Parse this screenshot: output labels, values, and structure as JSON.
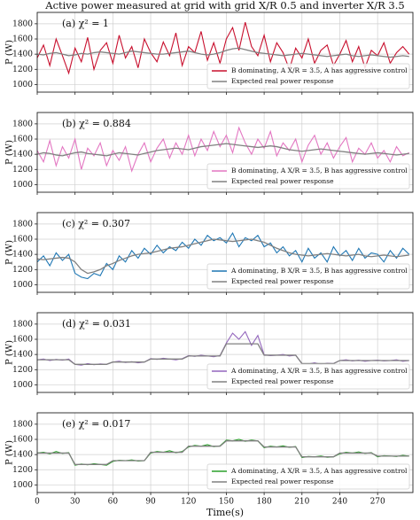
{
  "chart_data": [
    {
      "type": "line",
      "title": "Active power measured at grid with grid X/R 0.5 and inverter X/R 3.5",
      "annotation": "(a) χ² = 1",
      "ylabel": "P (W)",
      "x": [
        0,
        5,
        10,
        15,
        20,
        25,
        30,
        35,
        40,
        45,
        50,
        55,
        60,
        65,
        70,
        75,
        80,
        85,
        90,
        95,
        100,
        105,
        110,
        115,
        120,
        125,
        130,
        135,
        140,
        145,
        150,
        155,
        160,
        165,
        170,
        175,
        180,
        185,
        190,
        195,
        200,
        205,
        210,
        215,
        220,
        225,
        230,
        235,
        240,
        245,
        250,
        255,
        260,
        265,
        270,
        275,
        280,
        285,
        290,
        295
      ],
      "series": [
        {
          "name": "B dominating, A X/R = 3.5, A has aggressive control",
          "color": "#c8102e",
          "values": [
            1350,
            1520,
            1250,
            1600,
            1380,
            1150,
            1480,
            1300,
            1620,
            1200,
            1450,
            1550,
            1280,
            1650,
            1350,
            1500,
            1220,
            1600,
            1420,
            1300,
            1560,
            1380,
            1680,
            1250,
            1500,
            1420,
            1700,
            1320,
            1550,
            1280,
            1600,
            1750,
            1450,
            1820,
            1500,
            1380,
            1650,
            1300,
            1550,
            1420,
            1200,
            1480,
            1350,
            1600,
            1280,
            1450,
            1520,
            1250,
            1400,
            1580,
            1300,
            1500,
            1220,
            1450,
            1380,
            1550,
            1280,
            1420,
            1500,
            1400
          ]
        },
        {
          "name": "Expected real power response",
          "color": "#808080",
          "values": [
            1400,
            1390,
            1410,
            1420,
            1400,
            1380,
            1390,
            1410,
            1400,
            1420,
            1430,
            1420,
            1410,
            1400,
            1420,
            1440,
            1430,
            1420,
            1410,
            1400,
            1400,
            1410,
            1420,
            1430,
            1440,
            1420,
            1400,
            1390,
            1400,
            1420,
            1450,
            1470,
            1480,
            1460,
            1440,
            1420,
            1410,
            1400,
            1390,
            1380,
            1390,
            1400,
            1410,
            1400,
            1390,
            1380,
            1370,
            1380,
            1390,
            1400,
            1380,
            1370,
            1380,
            1390,
            1380,
            1370,
            1360,
            1370,
            1380,
            1370
          ]
        }
      ],
      "xlim": [
        0,
        298
      ],
      "xticks": [
        0,
        30,
        60,
        90,
        120,
        150,
        180,
        210,
        240,
        270
      ],
      "ylim": [
        900,
        1950
      ],
      "yticks": [
        1000,
        1200,
        1400,
        1600,
        1800
      ],
      "grid": true,
      "legend": "lower right"
    },
    {
      "type": "line",
      "annotation": "(b) χ² = 0.884",
      "ylabel": "P (W)",
      "x": [
        0,
        5,
        10,
        15,
        20,
        25,
        30,
        35,
        40,
        45,
        50,
        55,
        60,
        65,
        70,
        75,
        80,
        85,
        90,
        95,
        100,
        105,
        110,
        115,
        120,
        125,
        130,
        135,
        140,
        145,
        150,
        155,
        160,
        165,
        170,
        175,
        180,
        185,
        190,
        195,
        200,
        205,
        210,
        215,
        220,
        225,
        230,
        235,
        240,
        245,
        250,
        255,
        260,
        265,
        270,
        275,
        280,
        285,
        290,
        295
      ],
      "series": [
        {
          "name": "B dominating, A X/R = 3.5, B has aggressive control",
          "color": "#e377c2",
          "values": [
            1450,
            1300,
            1580,
            1250,
            1500,
            1350,
            1600,
            1200,
            1480,
            1380,
            1550,
            1250,
            1450,
            1320,
            1500,
            1180,
            1400,
            1550,
            1300,
            1480,
            1600,
            1350,
            1550,
            1400,
            1650,
            1380,
            1600,
            1450,
            1700,
            1500,
            1650,
            1420,
            1750,
            1550,
            1400,
            1600,
            1480,
            1700,
            1380,
            1550,
            1450,
            1600,
            1300,
            1520,
            1650,
            1400,
            1550,
            1350,
            1500,
            1620,
            1300,
            1480,
            1400,
            1550,
            1350,
            1450,
            1300,
            1500,
            1380,
            1420
          ]
        },
        {
          "name": "Expected real power response",
          "color": "#808080",
          "values": [
            1400,
            1420,
            1410,
            1390,
            1380,
            1400,
            1420,
            1430,
            1410,
            1400,
            1390,
            1380,
            1400,
            1420,
            1410,
            1400,
            1390,
            1410,
            1430,
            1450,
            1460,
            1470,
            1480,
            1470,
            1460,
            1480,
            1500,
            1510,
            1520,
            1530,
            1540,
            1530,
            1520,
            1510,
            1500,
            1490,
            1500,
            1510,
            1500,
            1480,
            1460,
            1450,
            1440,
            1450,
            1460,
            1470,
            1460,
            1450,
            1440,
            1430,
            1420,
            1410,
            1400,
            1410,
            1420,
            1410,
            1400,
            1390,
            1400,
            1410
          ]
        }
      ],
      "xlim": [
        0,
        298
      ],
      "xticks": [
        0,
        30,
        60,
        90,
        120,
        150,
        180,
        210,
        240,
        270
      ],
      "ylim": [
        900,
        1950
      ],
      "yticks": [
        1000,
        1200,
        1400,
        1600,
        1800
      ],
      "grid": true,
      "legend": "lower right"
    },
    {
      "type": "line",
      "annotation": "(c) χ² = 0.307",
      "ylabel": "P (W)",
      "x": [
        0,
        5,
        10,
        15,
        20,
        25,
        30,
        35,
        40,
        45,
        50,
        55,
        60,
        65,
        70,
        75,
        80,
        85,
        90,
        95,
        100,
        105,
        110,
        115,
        120,
        125,
        130,
        135,
        140,
        145,
        150,
        155,
        160,
        165,
        170,
        175,
        180,
        185,
        190,
        195,
        200,
        205,
        210,
        215,
        220,
        225,
        230,
        235,
        240,
        245,
        250,
        255,
        260,
        265,
        270,
        275,
        280,
        285,
        290,
        295
      ],
      "series": [
        {
          "name": "A dominating, B X/R = 3.5, B has aggressive control",
          "color": "#1f77b4",
          "values": [
            1300,
            1380,
            1250,
            1420,
            1320,
            1400,
            1150,
            1100,
            1080,
            1150,
            1120,
            1280,
            1200,
            1380,
            1300,
            1450,
            1350,
            1480,
            1400,
            1520,
            1420,
            1500,
            1450,
            1560,
            1480,
            1600,
            1520,
            1650,
            1580,
            1620,
            1550,
            1680,
            1500,
            1620,
            1580,
            1650,
            1500,
            1550,
            1420,
            1500,
            1380,
            1450,
            1300,
            1480,
            1350,
            1420,
            1300,
            1500,
            1380,
            1450,
            1320,
            1480,
            1350,
            1420,
            1400,
            1300,
            1450,
            1350,
            1480,
            1400
          ]
        },
        {
          "name": "Expected real power response",
          "color": "#808080",
          "values": [
            1340,
            1330,
            1340,
            1350,
            1360,
            1350,
            1300,
            1200,
            1150,
            1170,
            1200,
            1250,
            1280,
            1320,
            1350,
            1380,
            1400,
            1410,
            1420,
            1440,
            1460,
            1480,
            1490,
            1500,
            1520,
            1540,
            1560,
            1580,
            1600,
            1590,
            1580,
            1570,
            1580,
            1590,
            1600,
            1580,
            1560,
            1520,
            1480,
            1450,
            1420,
            1400,
            1390,
            1380,
            1390,
            1400,
            1410,
            1400,
            1390,
            1380,
            1390,
            1400,
            1380,
            1370,
            1380,
            1390,
            1380,
            1370,
            1380,
            1390
          ]
        }
      ],
      "xlim": [
        0,
        298
      ],
      "xticks": [
        0,
        30,
        60,
        90,
        120,
        150,
        180,
        210,
        240,
        270
      ],
      "ylim": [
        900,
        1950
      ],
      "yticks": [
        1000,
        1200,
        1400,
        1600,
        1800
      ],
      "grid": true,
      "legend": "lower right"
    },
    {
      "type": "line",
      "annotation": "(d) χ² = 0.031",
      "ylabel": "P (W)",
      "x": [
        0,
        5,
        10,
        15,
        20,
        25,
        30,
        35,
        40,
        45,
        50,
        55,
        60,
        65,
        70,
        75,
        80,
        85,
        90,
        95,
        100,
        105,
        110,
        115,
        120,
        125,
        130,
        135,
        140,
        145,
        150,
        155,
        160,
        165,
        170,
        175,
        180,
        185,
        190,
        195,
        200,
        205,
        210,
        215,
        220,
        225,
        230,
        235,
        240,
        245,
        250,
        255,
        260,
        265,
        270,
        275,
        280,
        285,
        290,
        295
      ],
      "series": [
        {
          "name": "A dominating, A X/R = 3.5, B has aggressive control",
          "color": "#9467bd",
          "values": [
            1330,
            1340,
            1320,
            1335,
            1325,
            1340,
            1270,
            1260,
            1280,
            1265,
            1275,
            1270,
            1300,
            1310,
            1295,
            1305,
            1290,
            1300,
            1345,
            1335,
            1350,
            1340,
            1330,
            1345,
            1385,
            1375,
            1390,
            1380,
            1370,
            1385,
            1550,
            1680,
            1600,
            1700,
            1520,
            1650,
            1395,
            1385,
            1390,
            1400,
            1380,
            1390,
            1280,
            1275,
            1290,
            1270,
            1285,
            1280,
            1320,
            1330,
            1315,
            1325,
            1310,
            1320,
            1325,
            1315,
            1320,
            1330,
            1310,
            1320
          ]
        },
        {
          "name": "Expected real power response",
          "color": "#808080",
          "values": [
            1330,
            1330,
            1330,
            1330,
            1330,
            1330,
            1270,
            1270,
            1270,
            1270,
            1270,
            1270,
            1300,
            1300,
            1300,
            1300,
            1300,
            1300,
            1340,
            1340,
            1340,
            1340,
            1340,
            1340,
            1380,
            1380,
            1380,
            1380,
            1380,
            1380,
            1540,
            1540,
            1540,
            1540,
            1540,
            1540,
            1390,
            1390,
            1390,
            1390,
            1390,
            1390,
            1280,
            1280,
            1280,
            1280,
            1280,
            1280,
            1320,
            1320,
            1320,
            1320,
            1320,
            1320,
            1320,
            1320,
            1320,
            1320,
            1320,
            1320
          ]
        }
      ],
      "xlim": [
        0,
        298
      ],
      "xticks": [
        0,
        30,
        60,
        90,
        120,
        150,
        180,
        210,
        240,
        270
      ],
      "ylim": [
        900,
        1950
      ],
      "yticks": [
        1000,
        1200,
        1400,
        1600,
        1800
      ],
      "grid": true,
      "legend": "lower right"
    },
    {
      "type": "line",
      "annotation": "(e) χ² = 0.017",
      "ylabel": "P (W)",
      "xlabel": "Time(s)",
      "x": [
        0,
        5,
        10,
        15,
        20,
        25,
        30,
        35,
        40,
        45,
        50,
        55,
        60,
        65,
        70,
        75,
        80,
        85,
        90,
        95,
        100,
        105,
        110,
        115,
        120,
        125,
        130,
        135,
        140,
        145,
        150,
        155,
        160,
        165,
        170,
        175,
        180,
        185,
        190,
        195,
        200,
        205,
        210,
        215,
        220,
        225,
        230,
        235,
        240,
        245,
        250,
        255,
        260,
        265,
        270,
        275,
        280,
        285,
        290,
        295
      ],
      "series": [
        {
          "name": "A dominating, A X/R = 3.5, A has aggressive control",
          "color": "#2ca02c",
          "values": [
            1420,
            1430,
            1410,
            1440,
            1415,
            1425,
            1260,
            1275,
            1265,
            1280,
            1270,
            1260,
            1310,
            1325,
            1320,
            1330,
            1315,
            1320,
            1420,
            1440,
            1430,
            1450,
            1425,
            1440,
            1500,
            1520,
            1510,
            1530,
            1505,
            1515,
            1590,
            1580,
            1600,
            1575,
            1590,
            1580,
            1490,
            1510,
            1500,
            1515,
            1495,
            1505,
            1360,
            1375,
            1370,
            1380,
            1365,
            1370,
            1410,
            1430,
            1420,
            1435,
            1415,
            1425,
            1370,
            1385,
            1380,
            1375,
            1390,
            1380
          ]
        },
        {
          "name": "Expected real power response",
          "color": "#808080",
          "values": [
            1420,
            1420,
            1420,
            1420,
            1420,
            1420,
            1270,
            1270,
            1270,
            1270,
            1270,
            1270,
            1320,
            1320,
            1320,
            1320,
            1320,
            1320,
            1430,
            1430,
            1430,
            1430,
            1430,
            1430,
            1510,
            1510,
            1510,
            1510,
            1510,
            1510,
            1580,
            1580,
            1580,
            1580,
            1580,
            1580,
            1500,
            1500,
            1500,
            1500,
            1500,
            1500,
            1370,
            1370,
            1370,
            1370,
            1370,
            1370,
            1420,
            1420,
            1420,
            1420,
            1420,
            1420,
            1380,
            1380,
            1380,
            1380,
            1380,
            1380
          ]
        }
      ],
      "xlim": [
        0,
        298
      ],
      "xticks": [
        0,
        30,
        60,
        90,
        120,
        150,
        180,
        210,
        240,
        270
      ],
      "ylim": [
        900,
        1950
      ],
      "yticks": [
        1000,
        1200,
        1400,
        1600,
        1800
      ],
      "grid": true,
      "legend": "lower right"
    }
  ]
}
